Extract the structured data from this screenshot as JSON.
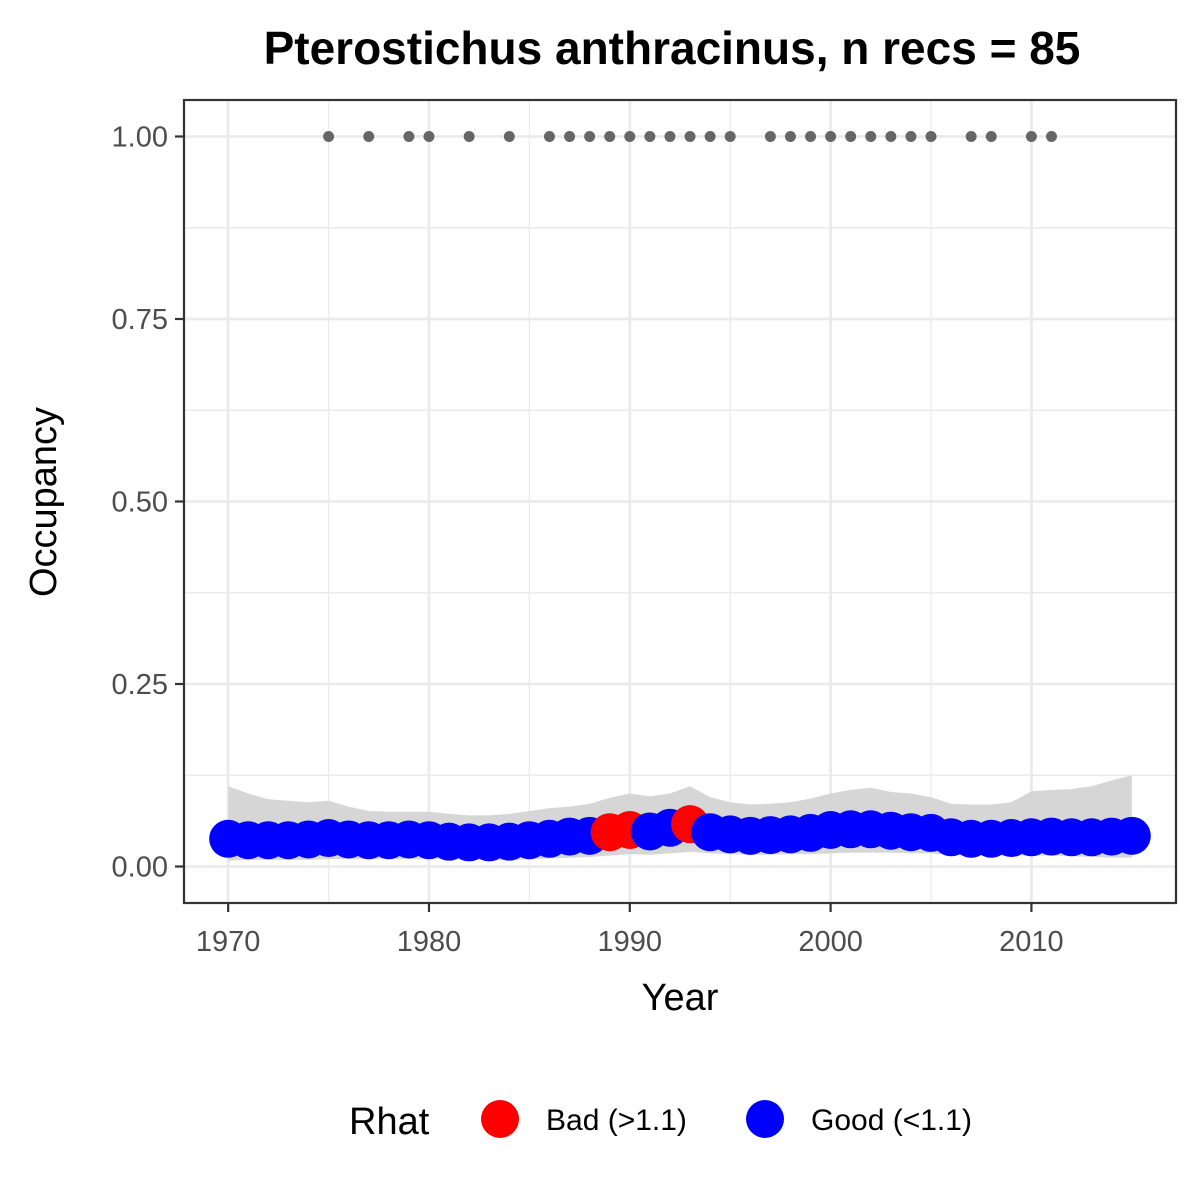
{
  "chart_data": {
    "type": "scatter",
    "title": "Pterostichus anthracinus, n recs = 85",
    "xlabel": "Year",
    "ylabel": "Occupancy",
    "xlim": [
      1967.8,
      2017.2
    ],
    "ylim": [
      -0.05,
      1.05
    ],
    "x_ticks": [
      1970,
      1980,
      1990,
      2000,
      2010
    ],
    "x_tick_labels": [
      "1970",
      "1980",
      "1990",
      "2000",
      "2010"
    ],
    "y_ticks": [
      0,
      0.25,
      0.5,
      0.75,
      1.0
    ],
    "y_tick_labels": [
      "0.00",
      "0.25",
      "0.50",
      "0.75",
      "1.00"
    ],
    "grid": true,
    "legend_position": "bottom",
    "legend": {
      "title": "Rhat",
      "entries": [
        {
          "label": "Bad (>1.1)",
          "color": "#ff0000"
        },
        {
          "label": "Good (<1.1)",
          "color": "#0000ff"
        }
      ]
    },
    "colors": {
      "bad": "#ff0000",
      "good": "#0000ff",
      "ribbon": "#d4d4d4",
      "records": "#666666",
      "grid": "#ebebeb",
      "panel_border": "#333333"
    },
    "x": [
      1970,
      1971,
      1972,
      1973,
      1974,
      1975,
      1976,
      1977,
      1978,
      1979,
      1980,
      1981,
      1982,
      1983,
      1984,
      1985,
      1986,
      1987,
      1988,
      1989,
      1990,
      1991,
      1992,
      1993,
      1994,
      1995,
      1996,
      1997,
      1998,
      1999,
      2000,
      2001,
      2002,
      2003,
      2004,
      2005,
      2006,
      2007,
      2008,
      2009,
      2010,
      2011,
      2012,
      2013,
      2014,
      2015
    ],
    "occupancy": [
      0.038,
      0.036,
      0.036,
      0.036,
      0.037,
      0.039,
      0.037,
      0.036,
      0.036,
      0.037,
      0.036,
      0.034,
      0.033,
      0.033,
      0.034,
      0.036,
      0.038,
      0.041,
      0.042,
      0.047,
      0.05,
      0.048,
      0.053,
      0.058,
      0.047,
      0.044,
      0.042,
      0.043,
      0.044,
      0.046,
      0.05,
      0.051,
      0.051,
      0.049,
      0.047,
      0.046,
      0.04,
      0.038,
      0.038,
      0.039,
      0.04,
      0.041,
      0.04,
      0.04,
      0.041,
      0.042
    ],
    "lower": [
      0.008,
      0.009,
      0.009,
      0.009,
      0.009,
      0.01,
      0.01,
      0.01,
      0.01,
      0.01,
      0.01,
      0.01,
      0.009,
      0.009,
      0.009,
      0.01,
      0.011,
      0.012,
      0.013,
      0.015,
      0.017,
      0.016,
      0.018,
      0.02,
      0.018,
      0.017,
      0.016,
      0.016,
      0.017,
      0.017,
      0.018,
      0.019,
      0.019,
      0.019,
      0.018,
      0.018,
      0.016,
      0.015,
      0.015,
      0.015,
      0.015,
      0.015,
      0.014,
      0.013,
      0.012,
      0.012
    ],
    "upper": [
      0.11,
      0.1,
      0.092,
      0.09,
      0.088,
      0.09,
      0.082,
      0.076,
      0.075,
      0.075,
      0.075,
      0.072,
      0.07,
      0.07,
      0.072,
      0.076,
      0.08,
      0.082,
      0.086,
      0.094,
      0.1,
      0.096,
      0.1,
      0.11,
      0.095,
      0.088,
      0.085,
      0.086,
      0.088,
      0.093,
      0.1,
      0.105,
      0.108,
      0.102,
      0.1,
      0.095,
      0.086,
      0.085,
      0.085,
      0.088,
      0.103,
      0.105,
      0.106,
      0.11,
      0.118,
      0.125
    ],
    "rhat_status": [
      "good",
      "good",
      "good",
      "good",
      "good",
      "good",
      "good",
      "good",
      "good",
      "good",
      "good",
      "good",
      "good",
      "good",
      "good",
      "good",
      "good",
      "good",
      "good",
      "bad",
      "bad",
      "good",
      "good",
      "bad",
      "good",
      "good",
      "good",
      "good",
      "good",
      "good",
      "good",
      "good",
      "good",
      "good",
      "good",
      "good",
      "good",
      "good",
      "good",
      "good",
      "good",
      "good",
      "good",
      "good",
      "good",
      "good"
    ],
    "record_years": [
      1975,
      1977,
      1979,
      1980,
      1982,
      1984,
      1986,
      1987,
      1988,
      1989,
      1990,
      1991,
      1992,
      1993,
      1994,
      1995,
      1997,
      1998,
      1999,
      2000,
      2001,
      2002,
      2003,
      2004,
      2005,
      2007,
      2008,
      2010,
      2011
    ],
    "record_value": 1.0
  }
}
